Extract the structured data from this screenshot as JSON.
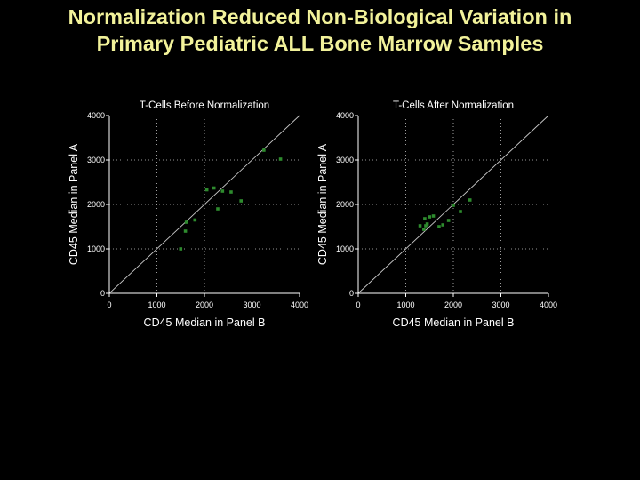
{
  "slide": {
    "title_line1": "Normalization Reduced Non-Biological Variation in",
    "title_line2": "Primary Pediatric ALL Bone Marrow Samples"
  },
  "colors": {
    "background": "#000000",
    "title": "#f2f29a",
    "axes": "#ffffff",
    "points": "#2e8b2e",
    "diagonal": "#c8c8c8",
    "grid": "#c8c8c8"
  },
  "chart_data": [
    {
      "type": "scatter",
      "title": "T-Cells Before Normalization",
      "xlabel": "CD45 Median in Panel B",
      "ylabel": "CD45 Median in Panel A",
      "xlim": [
        0,
        4000
      ],
      "ylim": [
        0,
        4000
      ],
      "xticks": [
        0,
        1000,
        2000,
        3000,
        4000
      ],
      "yticks": [
        0,
        1000,
        2000,
        3000,
        4000
      ],
      "grid": "dotted",
      "reference_line": "y = x",
      "series": [
        {
          "x": [
            1500,
            1600,
            1620,
            1800,
            2050,
            2200,
            2280,
            2380,
            2560,
            2770,
            3250,
            3600
          ],
          "y": [
            1000,
            1400,
            1600,
            1650,
            2330,
            2370,
            1900,
            2300,
            2280,
            2080,
            3220,
            3020
          ]
        }
      ]
    },
    {
      "type": "scatter",
      "title": "T-Cells After Normalization",
      "xlabel": "CD45 Median in Panel B",
      "ylabel": "CD45 Median in Panel A",
      "xlim": [
        0,
        4000
      ],
      "ylim": [
        0,
        4000
      ],
      "xticks": [
        0,
        1000,
        2000,
        3000,
        4000
      ],
      "yticks": [
        0,
        1000,
        2000,
        3000,
        4000
      ],
      "grid": "dotted",
      "reference_line": "y = x",
      "series": [
        {
          "x": [
            1300,
            1380,
            1420,
            1400,
            1450,
            1500,
            1580,
            1700,
            1780,
            1900,
            2000,
            2150,
            2350
          ],
          "y": [
            1520,
            1440,
            1520,
            1680,
            1560,
            1720,
            1740,
            1500,
            1540,
            1640,
            1980,
            1840,
            2100
          ]
        }
      ]
    }
  ]
}
